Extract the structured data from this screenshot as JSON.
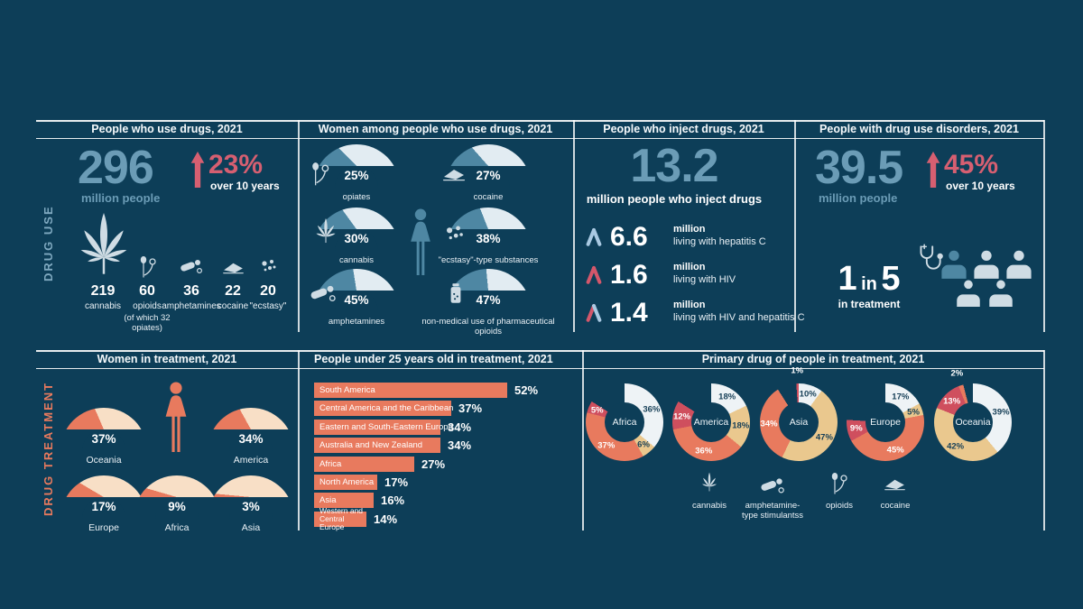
{
  "colors": {
    "background": "#0d3e58",
    "big_number_blue": "#6b9cb6",
    "accent_red": "#d65f71",
    "gauge_blue": "#4e87a3",
    "blue_track": "#e2ecf2",
    "salmon": "#e87a5e",
    "peach_track": "#f8dfc6",
    "tan": "#eac88e",
    "donut_white": "#eef3f6",
    "donut_red": "#cf4f5e",
    "pale_icon_blue": "#cfdce4",
    "ribbon_blue": "#a9c9e2",
    "ribbon_red": "#d4576b"
  },
  "side_labels": {
    "drug_use": "DRUG USE",
    "drug_treatment": "DRUG TREATMENT"
  },
  "panels": {
    "use": {
      "title": "People who use drugs, 2021",
      "big_number": "296",
      "big_unit": "million people",
      "change": "23%",
      "change_note": "over 10 years",
      "substances": [
        {
          "value": "219",
          "label": "cannabis",
          "note": ""
        },
        {
          "value": "60",
          "label": "opioids",
          "note": "(of which 32 opiates)"
        },
        {
          "value": "36",
          "label": "amphetamines",
          "note": ""
        },
        {
          "value": "22",
          "label": "cocaine",
          "note": ""
        },
        {
          "value": "20",
          "label": "\"ecstasy\"",
          "note": ""
        }
      ]
    },
    "women_use": {
      "title": "Women among people who use drugs, 2021",
      "gauges": [
        {
          "pct": 25,
          "label": "25%",
          "name": "opiates"
        },
        {
          "pct": 27,
          "label": "27%",
          "name": "cocaine"
        },
        {
          "pct": 30,
          "label": "30%",
          "name": "cannabis"
        },
        {
          "pct": 38,
          "label": "38%",
          "name": "\"ecstasy\"-type substances"
        },
        {
          "pct": 45,
          "label": "45%",
          "name": "amphetamines"
        },
        {
          "pct": 47,
          "label": "47%",
          "name": "non-medical use of pharmaceutical opioids"
        }
      ]
    },
    "inject": {
      "title": "People who inject drugs, 2021",
      "big_number": "13.2",
      "big_unit": "million people who inject drugs",
      "rows": [
        {
          "value": "6.6",
          "unit": "million",
          "label": "living with hepatitis C"
        },
        {
          "value": "1.6",
          "unit": "million",
          "label": "living with HIV"
        },
        {
          "value": "1.4",
          "unit": "million",
          "label": "living with HIV and hepatitis C"
        }
      ]
    },
    "disorders": {
      "title": "People with drug use disorders, 2021",
      "big_number": "39.5",
      "big_unit": "million people",
      "change": "45%",
      "change_note": "over 10 years",
      "ratio_parts": [
        "1",
        "in",
        "5"
      ],
      "ratio_note": "in treatment"
    },
    "women_treatment": {
      "title": "Women in treatment, 2021",
      "gauges": [
        {
          "pct": 37,
          "label": "37%",
          "name": "Oceania"
        },
        {
          "pct": 34,
          "label": "34%",
          "name": "America"
        },
        {
          "pct": 17,
          "label": "17%",
          "name": "Europe"
        },
        {
          "pct": 9,
          "label": "9%",
          "name": "Africa"
        },
        {
          "pct": 3,
          "label": "3%",
          "name": "Asia"
        }
      ]
    },
    "under25": {
      "title": "People under 25 years old in treatment, 2021",
      "bars": [
        {
          "region": "South America",
          "pct": 52,
          "label": "52%"
        },
        {
          "region": "Central America and the Caribbean",
          "pct": 37,
          "label": "37%"
        },
        {
          "region": "Eastern and South-Eastern Europe",
          "pct": 34,
          "label": "34%"
        },
        {
          "region": "Australia and New Zealand",
          "pct": 34,
          "label": "34%"
        },
        {
          "region": "Africa",
          "pct": 27,
          "label": "27%"
        },
        {
          "region": "North America",
          "pct": 17,
          "label": "17%"
        },
        {
          "region": "Asia",
          "pct": 16,
          "label": "16%"
        },
        {
          "region": "Western and Central Europe",
          "pct": 14,
          "label": "14%"
        }
      ]
    },
    "primary_drug": {
      "title": "Primary drug of people in treatment, 2021",
      "donuts": [
        {
          "region": "Africa",
          "segments": [
            {
              "drug": "cannabis",
              "pct": 36,
              "label": "36%",
              "color": "#eef3f6"
            },
            {
              "drug": "amphetamine-type stimulants",
              "pct": 6,
              "label": "6%",
              "color": "#eac88e"
            },
            {
              "drug": "opioids",
              "pct": 37,
              "label": "37%",
              "color": "#e87a5e"
            },
            {
              "drug": "cocaine",
              "pct": 5,
              "label": "5%",
              "color": "#cf4f5e"
            },
            {
              "drug": "other",
              "pct": 16,
              "label": "",
              "color": "background"
            }
          ]
        },
        {
          "region": "America",
          "segments": [
            {
              "drug": "cannabis",
              "pct": 18,
              "label": "18%",
              "color": "#eef3f6"
            },
            {
              "drug": "amphetamine-type stimulants",
              "pct": 18,
              "label": "18%",
              "color": "#eac88e"
            },
            {
              "drug": "opioids",
              "pct": 36,
              "label": "36%",
              "color": "#e87a5e"
            },
            {
              "drug": "cocaine",
              "pct": 12,
              "label": "12%",
              "color": "#cf4f5e"
            },
            {
              "drug": "other",
              "pct": 16,
              "label": "",
              "color": "background"
            }
          ]
        },
        {
          "region": "Asia",
          "segments": [
            {
              "drug": "cannabis",
              "pct": 10,
              "label": "10%",
              "color": "#eef3f6"
            },
            {
              "drug": "amphetamine-type stimulants",
              "pct": 47,
              "label": "47%",
              "color": "#eac88e"
            },
            {
              "drug": "opioids",
              "pct": 34,
              "label": "34%",
              "color": "#e87a5e"
            },
            {
              "drug": "other",
              "pct": 8,
              "label": "",
              "color": "background"
            },
            {
              "drug": "cocaine",
              "pct": 1,
              "label": "1%",
              "color": "#cf4f5e"
            }
          ]
        },
        {
          "region": "Europe",
          "segments": [
            {
              "drug": "cannabis",
              "pct": 17,
              "label": "17%",
              "color": "#eef3f6"
            },
            {
              "drug": "amphetamine-type stimulants",
              "pct": 5,
              "label": "5%",
              "color": "#eac88e"
            },
            {
              "drug": "opioids",
              "pct": 45,
              "label": "45%",
              "color": "#e87a5e"
            },
            {
              "drug": "cocaine",
              "pct": 9,
              "label": "9%",
              "color": "#cf4f5e"
            },
            {
              "drug": "other",
              "pct": 24,
              "label": "",
              "color": "background"
            }
          ]
        },
        {
          "region": "Oceania",
          "segments": [
            {
              "drug": "cannabis",
              "pct": 39,
              "label": "39%",
              "color": "#eef3f6"
            },
            {
              "drug": "amphetamine-type stimulants",
              "pct": 42,
              "label": "42%",
              "color": "#eac88e"
            },
            {
              "drug": "cocaine",
              "pct": 13,
              "label": "13%",
              "color": "#cf4f5e"
            },
            {
              "drug": "opioids",
              "pct": 2,
              "label": "2%",
              "color": "#e87a5e"
            },
            {
              "drug": "other",
              "pct": 4,
              "label": "",
              "color": "background"
            }
          ]
        }
      ],
      "legend": [
        {
          "label": "cannabis"
        },
        {
          "label": "amphetamine-type stimulantss"
        },
        {
          "label": "opioids"
        },
        {
          "label": "cocaine"
        }
      ]
    }
  },
  "chart_data": [
    {
      "type": "pie",
      "subtype": "half-donut-gauges",
      "title": "Women among people who use drugs, 2021",
      "categories": [
        "opiates",
        "cocaine",
        "cannabis",
        "\"ecstasy\"-type substances",
        "amphetamines",
        "non-medical use of pharmaceutical opioids"
      ],
      "values": [
        25,
        27,
        30,
        38,
        45,
        47
      ],
      "unit": "percent"
    },
    {
      "type": "pie",
      "subtype": "half-donut-gauges",
      "title": "Women in treatment, 2021",
      "categories": [
        "Oceania",
        "America",
        "Europe",
        "Africa",
        "Asia"
      ],
      "values": [
        37,
        34,
        17,
        9,
        3
      ],
      "unit": "percent"
    },
    {
      "type": "bar",
      "orientation": "horizontal",
      "title": "People under 25 years old in treatment, 2021",
      "categories": [
        "South America",
        "Central America and the Caribbean",
        "Eastern and South-Eastern Europe",
        "Australia and New Zealand",
        "Africa",
        "North America",
        "Asia",
        "Western and Central Europe"
      ],
      "values": [
        52,
        37,
        34,
        34,
        27,
        17,
        16,
        14
      ],
      "unit": "percent",
      "xlim": [
        0,
        60
      ]
    },
    {
      "type": "pie",
      "subtype": "donut",
      "title": "Primary drug of people in treatment, 2021",
      "legend": [
        "cannabis",
        "amphetamine-type stimulants",
        "opioids",
        "cocaine"
      ],
      "series": [
        {
          "name": "Africa",
          "labels": [
            "cannabis",
            "amphetamine-type stimulants",
            "opioids",
            "cocaine"
          ],
          "values": [
            36,
            6,
            37,
            5
          ]
        },
        {
          "name": "America",
          "labels": [
            "cannabis",
            "amphetamine-type stimulants",
            "opioids",
            "cocaine"
          ],
          "values": [
            18,
            18,
            36,
            12
          ]
        },
        {
          "name": "Asia",
          "labels": [
            "cannabis",
            "amphetamine-type stimulants",
            "opioids",
            "cocaine"
          ],
          "values": [
            10,
            47,
            34,
            1
          ]
        },
        {
          "name": "Europe",
          "labels": [
            "cannabis",
            "amphetamine-type stimulants",
            "opioids",
            "cocaine"
          ],
          "values": [
            17,
            5,
            45,
            9
          ]
        },
        {
          "name": "Oceania",
          "labels": [
            "cannabis",
            "amphetamine-type stimulants",
            "cocaine",
            "opioids"
          ],
          "values": [
            39,
            42,
            13,
            2
          ]
        }
      ]
    },
    {
      "type": "table",
      "title": "People who use drugs, 2021 (million people)",
      "categories": [
        "cannabis",
        "opioids",
        "amphetamines",
        "cocaine",
        "\"ecstasy\""
      ],
      "values": [
        219,
        60,
        36,
        22,
        20
      ],
      "annotations": [
        "total 296 million people",
        "up 23% over 10 years",
        "of 60 million opioids, 32 million are opiates"
      ]
    },
    {
      "type": "table",
      "title": "People who inject drugs, 2021 (million people)",
      "categories": [
        "living with hepatitis C",
        "living with HIV",
        "living with HIV and hepatitis C"
      ],
      "values": [
        6.6,
        1.6,
        1.4
      ],
      "annotations": [
        "13.2 million people who inject drugs"
      ]
    },
    {
      "type": "table",
      "title": "People with drug use disorders, 2021",
      "categories": [
        "million people",
        "change over 10 years",
        "in treatment"
      ],
      "values": [
        "39.5",
        "+45%",
        "1 in 5"
      ]
    }
  ]
}
